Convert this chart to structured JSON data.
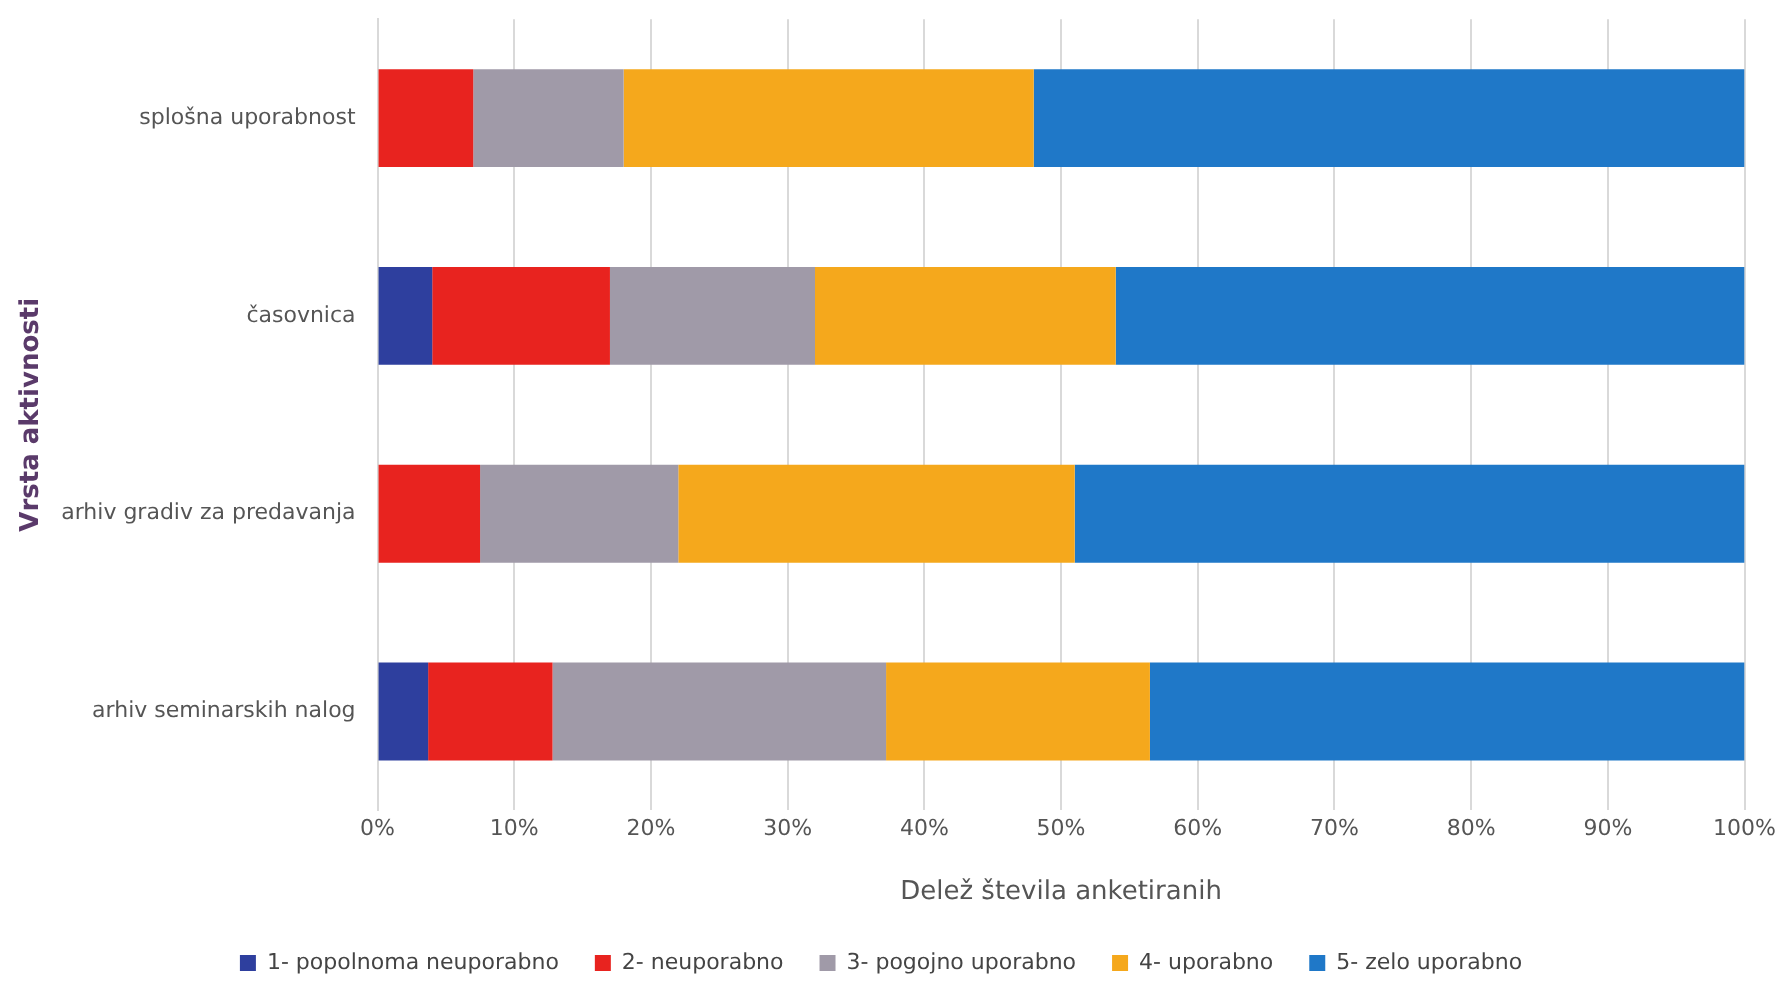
{
  "chart_data": {
    "type": "bar",
    "orientation": "horizontal",
    "stacked": true,
    "categories": [
      "splošna uporabnost",
      "časovnica",
      "arhiv gradiv za predavanja",
      "arhiv seminarskih nalog"
    ],
    "series": [
      {
        "name": "1- popolnoma neuporabno",
        "color": "#2e3f9e",
        "values": [
          0,
          4,
          0,
          3.7
        ]
      },
      {
        "name": "2- neuporabno",
        "color": "#e8231f",
        "values": [
          7,
          13,
          7.5,
          9.1
        ]
      },
      {
        "name": "3- pogojno uporabno",
        "color": "#a09aa8",
        "values": [
          11,
          15,
          14.5,
          24.4
        ]
      },
      {
        "name": "4- uporabno",
        "color": "#f5a81c",
        "values": [
          30,
          22,
          29,
          19.3
        ]
      },
      {
        "name": "5- zelo uporabno",
        "color": "#1f78c8",
        "values": [
          52,
          46,
          49,
          43.5
        ]
      }
    ],
    "xlabel": "Delež števila anketiranih",
    "ylabel": "Vrsta aktivnosti",
    "xlim": [
      0,
      100
    ],
    "xticks": [
      {
        "value": 0,
        "label": "0%"
      },
      {
        "value": 10,
        "label": "10%"
      },
      {
        "value": 20,
        "label": "20%"
      },
      {
        "value": 30,
        "label": "30%"
      },
      {
        "value": 40,
        "label": "40%"
      },
      {
        "value": 50,
        "label": "50%"
      },
      {
        "value": 60,
        "label": "60%"
      },
      {
        "value": 70,
        "label": "70%"
      },
      {
        "value": 80,
        "label": "80%"
      },
      {
        "value": 90,
        "label": "90%"
      },
      {
        "value": 100,
        "label": "100%"
      }
    ],
    "grid": "x",
    "legend": "bottom"
  }
}
